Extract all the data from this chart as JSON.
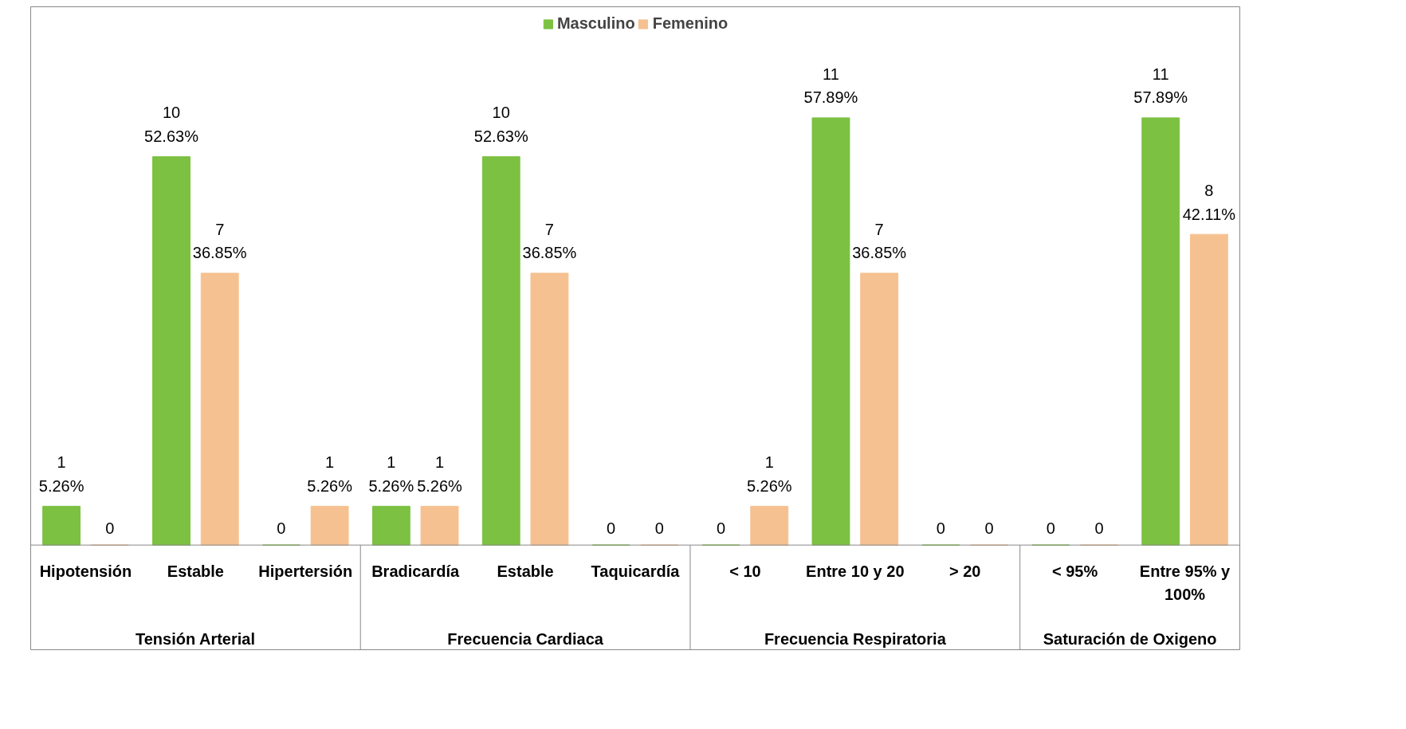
{
  "chart_data": {
    "type": "bar",
    "categories": [
      "Hipotensión",
      "Estable",
      "Hipertersión",
      "Bradicardía",
      "Estable",
      "Taquicardía",
      "< 10",
      "Entre 10 y 20",
      "> 20",
      "< 95%",
      "Entre 95% y 100%"
    ],
    "series": [
      {
        "name": "Masculino",
        "color": "#7cc142",
        "values": [
          1,
          10,
          0,
          1,
          10,
          0,
          0,
          11,
          0,
          0,
          11
        ],
        "value_labels": [
          "1\n5.26%",
          "10\n52.63%",
          "0",
          "1\n5.26%",
          "10\n52.63%",
          "0",
          "0",
          "11\n57.89%",
          "0",
          "0",
          "11\n57.89%"
        ]
      },
      {
        "name": "Femenino",
        "color": "#f6c190",
        "values": [
          0,
          7,
          1,
          1,
          7,
          0,
          1,
          7,
          0,
          0,
          8
        ],
        "value_labels": [
          "0",
          "7\n36.85%",
          "1\n5.26%",
          "1\n5.26%",
          "7\n36.85%",
          "0",
          "1\n5.26%",
          "7\n36.85%",
          "0",
          "0",
          "8\n42.11%"
        ]
      }
    ],
    "annotations": [
      "Tensión Arterial",
      "Frecuencia Cardiaca",
      "Frecuencia Respiratoria",
      "Saturación de Oxigeno"
    ],
    "legend": "top",
    "grid": false
  }
}
